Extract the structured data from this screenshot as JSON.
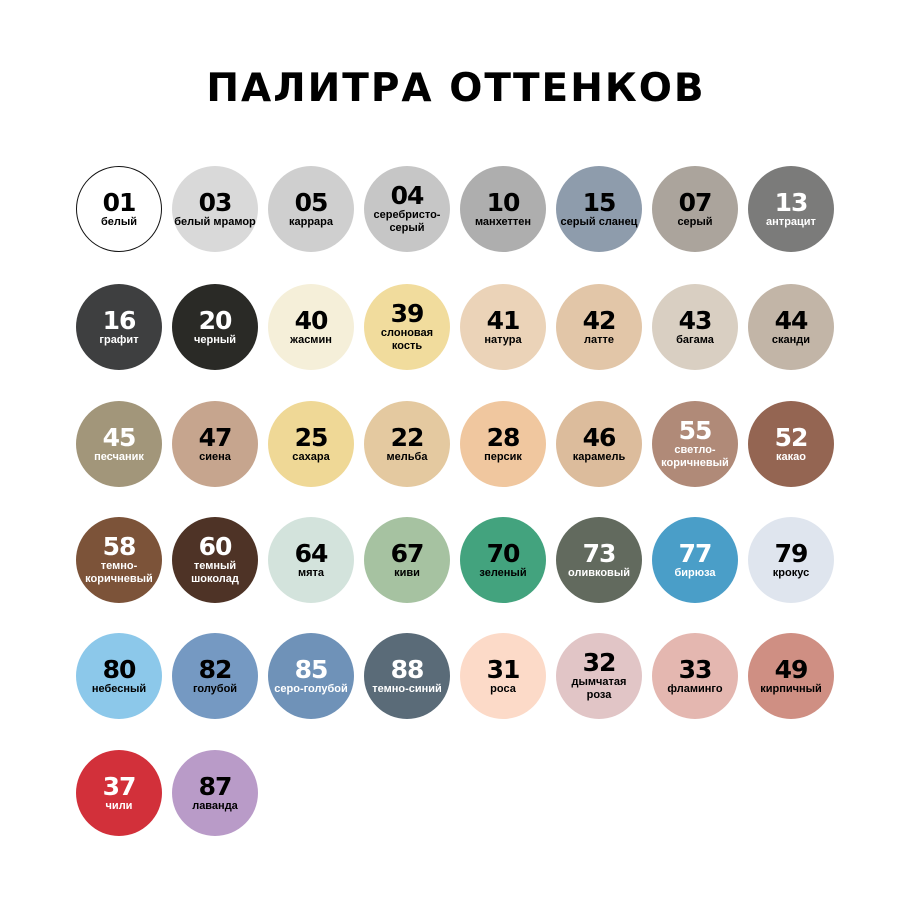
{
  "title": "ПАЛИТРА ОТТЕНКОВ",
  "swatches": [
    {
      "code": "01",
      "name": "белый",
      "color": "#ffffff",
      "text": "dark",
      "outline": true
    },
    {
      "code": "03",
      "name": "белый мрамор",
      "color": "#d9d9d9",
      "text": "dark"
    },
    {
      "code": "05",
      "name": "каррара",
      "color": "#cfcfcf",
      "text": "dark"
    },
    {
      "code": "04",
      "name": "серебристо-серый",
      "color": "#c6c6c6",
      "text": "dark"
    },
    {
      "code": "10",
      "name": "манхеттен",
      "color": "#aeaeae",
      "text": "dark"
    },
    {
      "code": "15",
      "name": "серый сланец",
      "color": "#8e9cac",
      "text": "dark"
    },
    {
      "code": "07",
      "name": "серый",
      "color": "#aba49c",
      "text": "dark"
    },
    {
      "code": "13",
      "name": "антрацит",
      "color": "#7b7b7a",
      "text": "light"
    },
    {
      "code": "16",
      "name": "графит",
      "color": "#3e3f40",
      "text": "light"
    },
    {
      "code": "20",
      "name": "черный",
      "color": "#2a2a26",
      "text": "light"
    },
    {
      "code": "40",
      "name": "жасмин",
      "color": "#f5efd9",
      "text": "dark"
    },
    {
      "code": "39",
      "name": "слоновая кость",
      "color": "#f1dc9d",
      "text": "dark"
    },
    {
      "code": "41",
      "name": "натура",
      "color": "#ebd3b8",
      "text": "dark"
    },
    {
      "code": "42",
      "name": "латте",
      "color": "#e2c6a8",
      "text": "dark"
    },
    {
      "code": "43",
      "name": "багама",
      "color": "#d9cfc2",
      "text": "dark"
    },
    {
      "code": "44",
      "name": "сканди",
      "color": "#c2b5a7",
      "text": "dark"
    },
    {
      "code": "45",
      "name": "песчаник",
      "color": "#a2967a",
      "text": "light"
    },
    {
      "code": "47",
      "name": "сиена",
      "color": "#c6a58e",
      "text": "dark"
    },
    {
      "code": "25",
      "name": "сахара",
      "color": "#efd896",
      "text": "dark"
    },
    {
      "code": "22",
      "name": "мельба",
      "color": "#e4c9a0",
      "text": "dark"
    },
    {
      "code": "28",
      "name": "персик",
      "color": "#f0c79f",
      "text": "dark"
    },
    {
      "code": "46",
      "name": "карамель",
      "color": "#dcbc9c",
      "text": "dark"
    },
    {
      "code": "55",
      "name": "светло-коричневый",
      "color": "#b08a78",
      "text": "light"
    },
    {
      "code": "52",
      "name": "какао",
      "color": "#946552",
      "text": "light"
    },
    {
      "code": "58",
      "name": "темно-коричневый",
      "color": "#7c5339",
      "text": "light"
    },
    {
      "code": "60",
      "name": "темный шоколад",
      "color": "#4e3326",
      "text": "light"
    },
    {
      "code": "64",
      "name": "мята",
      "color": "#d3e3dc",
      "text": "dark"
    },
    {
      "code": "67",
      "name": "киви",
      "color": "#a6c2a1",
      "text": "dark"
    },
    {
      "code": "70",
      "name": "зеленый",
      "color": "#43a37e",
      "text": "dark"
    },
    {
      "code": "73",
      "name": "оливковый",
      "color": "#626a5e",
      "text": "light"
    },
    {
      "code": "77",
      "name": "бирюза",
      "color": "#4a9ec8",
      "text": "light"
    },
    {
      "code": "79",
      "name": "крокус",
      "color": "#dfe5ee",
      "text": "dark"
    },
    {
      "code": "80",
      "name": "небесный",
      "color": "#8cc8ea",
      "text": "dark"
    },
    {
      "code": "82",
      "name": "голубой",
      "color": "#7599c2",
      "text": "dark"
    },
    {
      "code": "85",
      "name": "серо-голубой",
      "color": "#6f92b8",
      "text": "light"
    },
    {
      "code": "88",
      "name": "темно-синий",
      "color": "#5a6b78",
      "text": "light"
    },
    {
      "code": "31",
      "name": "роса",
      "color": "#fcdac8",
      "text": "dark"
    },
    {
      "code": "32",
      "name": "дымчатая роза",
      "color": "#e1c5c6",
      "text": "dark"
    },
    {
      "code": "33",
      "name": "фламинго",
      "color": "#e4b7b0",
      "text": "dark"
    },
    {
      "code": "49",
      "name": "кирпичный",
      "color": "#cf8f83",
      "text": "dark"
    },
    {
      "code": "37",
      "name": "чили",
      "color": "#d2303a",
      "text": "light"
    },
    {
      "code": "87",
      "name": "лаванда",
      "color": "#b99bc8",
      "text": "dark"
    }
  ]
}
